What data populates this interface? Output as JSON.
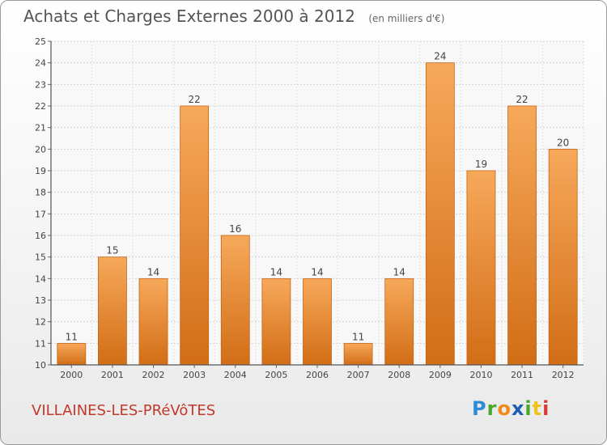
{
  "header": {
    "title": "Achats et Charges Externes 2000 à 2012",
    "unit": "(en milliers d'€)"
  },
  "footer": {
    "commune": "VILLAINES-LES-PRéVôTES",
    "brand": "Proxiti"
  },
  "colors": {
    "bar_light": "#f6a95a",
    "bar_dark": "#d26d16",
    "axis": "#555555"
  },
  "chart_data": {
    "type": "bar",
    "title": "Achats et Charges Externes 2000 à 2012",
    "subtitle": "(en milliers d'€)",
    "categories": [
      "2000",
      "2001",
      "2002",
      "2003",
      "2004",
      "2005",
      "2006",
      "2007",
      "2008",
      "2009",
      "2010",
      "2011",
      "2012"
    ],
    "values": [
      11,
      15,
      14,
      22,
      16,
      14,
      14,
      11,
      14,
      24,
      19,
      22,
      20
    ],
    "ylim": [
      10,
      25
    ],
    "yticks": [
      10,
      11,
      12,
      13,
      14,
      15,
      16,
      17,
      18,
      19,
      20,
      21,
      22,
      23,
      24,
      25
    ],
    "grid": true,
    "xlabel": "",
    "ylabel": ""
  }
}
